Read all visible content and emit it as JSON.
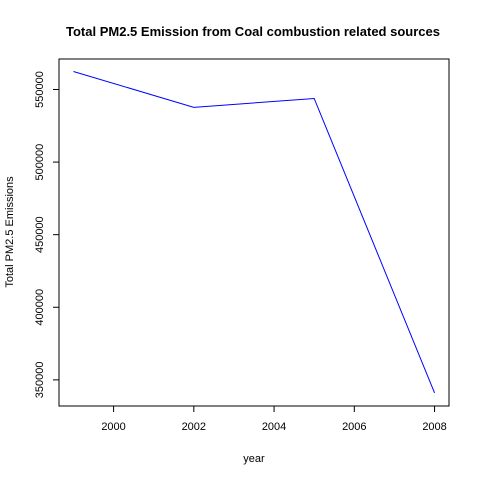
{
  "chart_data": {
    "type": "line",
    "title": "Total PM2.5 Emission from Coal combustion related sources",
    "xlabel": "year",
    "ylabel": "Total PM2.5 Emissions",
    "x": [
      1999,
      2002,
      2005,
      2008
    ],
    "series": [
      {
        "values": [
          562400,
          537700,
          543800,
          341000
        ],
        "color": "#0000ff"
      }
    ],
    "xlim": [
      1998.64,
      2008.36
    ],
    "ylim": [
      332000,
      571000
    ],
    "xticks": [
      2000,
      2002,
      2004,
      2006,
      2008
    ],
    "xtick_labels": [
      "2000",
      "2002",
      "2004",
      "2006",
      "2008"
    ],
    "yticks": [
      350000,
      400000,
      450000,
      500000,
      550000
    ],
    "ytick_labels": [
      "350000",
      "400000",
      "450000",
      "500000",
      "550000"
    ],
    "grid": false,
    "legend": "none"
  }
}
